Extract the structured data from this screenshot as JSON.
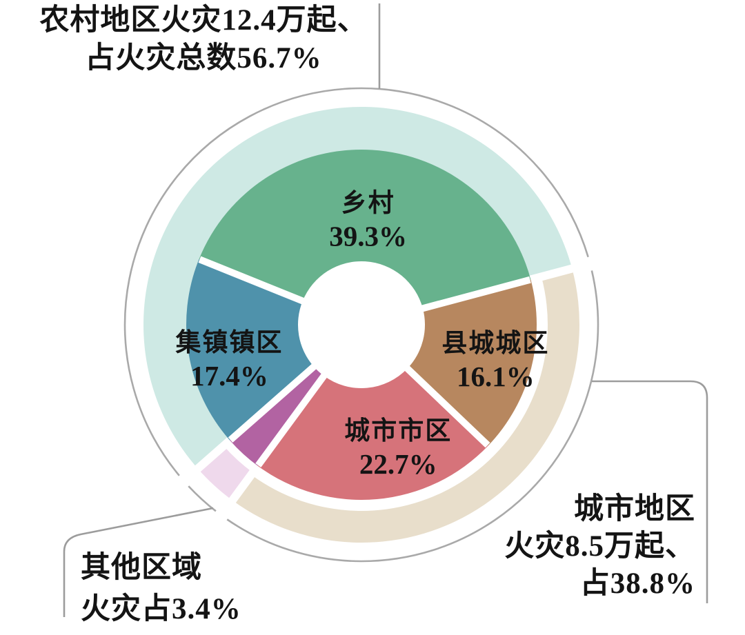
{
  "chart_data": {
    "type": "pie",
    "subtype": "donut-with-group-ring",
    "title": "",
    "unit": "%",
    "start_angle_deg": 158,
    "direction": "clockwise",
    "legend_position": "none",
    "slices": [
      {
        "label": "乡村",
        "value": 39.3,
        "display": "39.3%",
        "color": "#67b28d",
        "group": "rural"
      },
      {
        "label": "县城城区",
        "value": 16.1,
        "display": "16.1%",
        "color": "#b7875f",
        "group": "urban"
      },
      {
        "label": "城市市区",
        "value": 22.7,
        "display": "22.7%",
        "color": "#d6737a",
        "group": "urban"
      },
      {
        "label": "其他区域",
        "value": 3.4,
        "display": "",
        "color": "#b263a2",
        "group": "other"
      },
      {
        "label": "集镇镇区",
        "value": 17.4,
        "display": "17.4%",
        "color": "#4f92ab",
        "group": "rural"
      }
    ],
    "groups": [
      {
        "id": "rural",
        "value": 56.7,
        "fires": "12.4万起",
        "ring_color": "#cee9e4",
        "annotation": [
          "农村地区火灾12.4万起、",
          "占火灾总数56.7%"
        ]
      },
      {
        "id": "urban",
        "value": 38.8,
        "fires": "8.5万起",
        "ring_color": "#e8decb",
        "annotation": [
          "城市地区",
          "火灾8.5万起、",
          "占38.8%"
        ]
      },
      {
        "id": "other",
        "value": 3.4,
        "ring_color": "#efd9ec",
        "annotation": [
          "其他区域",
          "火灾占3.4%"
        ]
      }
    ],
    "colors": {
      "outline_circle": "#a9a9a9",
      "connector_line": "#9c9c9c",
      "label_text": "#141414",
      "background": "#ffffff"
    }
  }
}
